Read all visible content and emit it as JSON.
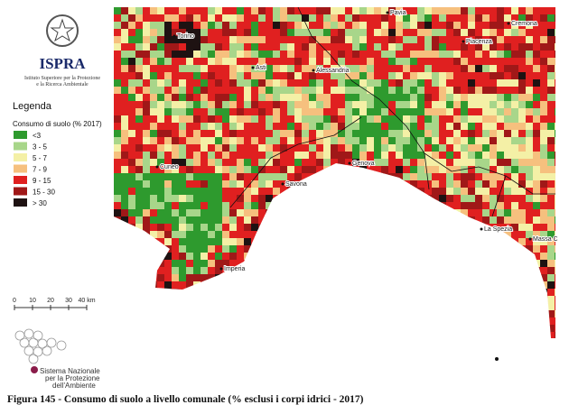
{
  "header": {
    "title": "ISPRA",
    "subtitle_lines": [
      "Istituto Superiore per la Protezione",
      "e la Ricerca Ambientale"
    ]
  },
  "legend": {
    "title": "Legenda",
    "subtitle": "Consumo di suolo (% 2017)",
    "items": [
      {
        "label": "<3",
        "color": "#2e9a2e"
      },
      {
        "label": "3 - 5",
        "color": "#a8d68a"
      },
      {
        "label": "5 - 7",
        "color": "#f4f0a6"
      },
      {
        "label": "7 - 9",
        "color": "#f6c07e"
      },
      {
        "label": "9 - 15",
        "color": "#e02020"
      },
      {
        "label": "15 - 30",
        "color": "#a01818"
      },
      {
        "label": "> 30",
        "color": "#1e1212"
      }
    ]
  },
  "scale_bar": {
    "labels": [
      "0",
      "10",
      "20",
      "30",
      "40 km"
    ]
  },
  "cities": [
    "Torino",
    "Asti",
    "Alessandria",
    "Pavia",
    "Piacenza",
    "Cremona",
    "Cuneo",
    "Savona",
    "Genova",
    "Imperia",
    "La Spezia",
    "Massa C"
  ],
  "footer_logo": {
    "lines": [
      "Sistema Nazionale",
      "per la Protezione",
      "dell'Ambiente"
    ]
  },
  "caption": "Figura 145 - Consumo di suolo a livello comunale (% esclusi i corpi idrici - 2017)"
}
